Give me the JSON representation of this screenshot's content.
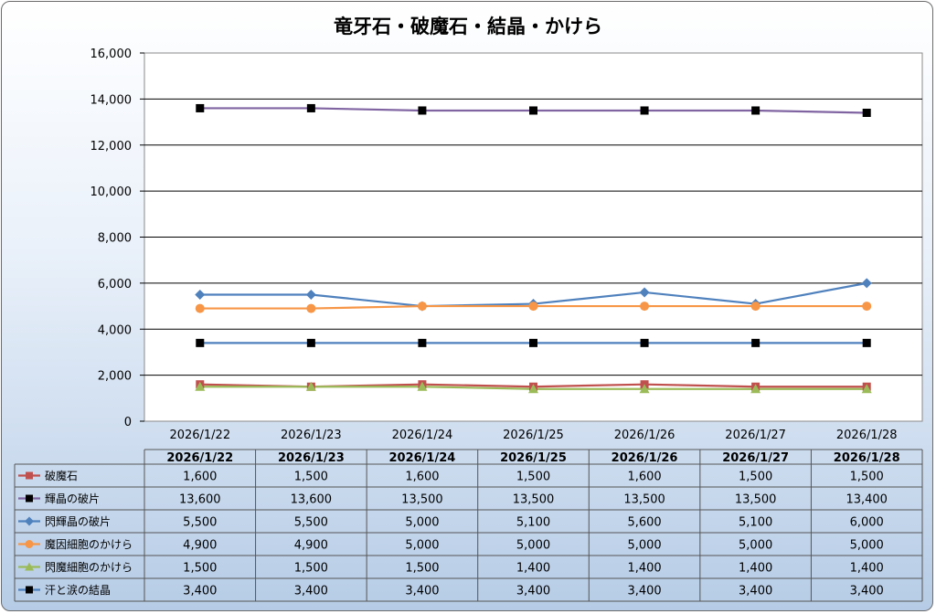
{
  "chart_data": {
    "type": "line",
    "title": "竜牙石・破魔石・結晶・かけら",
    "categories": [
      "2026/1/22",
      "2026/1/23",
      "2026/1/24",
      "2026/1/25",
      "2026/1/26",
      "2026/1/27",
      "2026/1/28"
    ],
    "ylim": [
      0,
      16000
    ],
    "yticks": [
      0,
      2000,
      4000,
      6000,
      8000,
      10000,
      12000,
      14000,
      16000
    ],
    "ytick_labels": [
      "0",
      "2,000",
      "4,000",
      "6,000",
      "8,000",
      "10,000",
      "12,000",
      "14,000",
      "16,000"
    ],
    "grid": true,
    "legend": "data-table",
    "series": [
      {
        "name": "破魔石",
        "color": "#c0504d",
        "line_color": "#c0504d",
        "marker": "square",
        "values": [
          1600,
          1500,
          1600,
          1500,
          1600,
          1500,
          1500
        ],
        "labels": [
          "1,600",
          "1,500",
          "1,600",
          "1,500",
          "1,600",
          "1,500",
          "1,500"
        ]
      },
      {
        "name": "輝晶の破片",
        "color": "#000000",
        "line_color": "#8064a2",
        "marker": "square",
        "values": [
          13600,
          13600,
          13500,
          13500,
          13500,
          13500,
          13400
        ],
        "labels": [
          "13,600",
          "13,600",
          "13,500",
          "13,500",
          "13,500",
          "13,500",
          "13,400"
        ]
      },
      {
        "name": "閃輝晶の破片",
        "color": "#4f81bd",
        "line_color": "#4f81bd",
        "marker": "diamond",
        "values": [
          5500,
          5500,
          5000,
          5100,
          5600,
          5100,
          6000
        ],
        "labels": [
          "5,500",
          "5,500",
          "5,000",
          "5,100",
          "5,600",
          "5,100",
          "6,000"
        ]
      },
      {
        "name": "魔因細胞のかけら",
        "color": "#f79646",
        "line_color": "#f79646",
        "marker": "circle",
        "values": [
          4900,
          4900,
          5000,
          5000,
          5000,
          5000,
          5000
        ],
        "labels": [
          "4,900",
          "4,900",
          "5,000",
          "5,000",
          "5,000",
          "5,000",
          "5,000"
        ]
      },
      {
        "name": "閃魔細胞のかけら",
        "color": "#9bbb59",
        "line_color": "#9bbb59",
        "marker": "triangle",
        "values": [
          1500,
          1500,
          1500,
          1400,
          1400,
          1400,
          1400
        ],
        "labels": [
          "1,500",
          "1,500",
          "1,500",
          "1,400",
          "1,400",
          "1,400",
          "1,400"
        ]
      },
      {
        "name": "汗と涙の結晶",
        "color": "#000000",
        "line_color": "#4f81bd",
        "marker": "square",
        "values": [
          3400,
          3400,
          3400,
          3400,
          3400,
          3400,
          3400
        ],
        "labels": [
          "3,400",
          "3,400",
          "3,400",
          "3,400",
          "3,400",
          "3,400",
          "3,400"
        ]
      }
    ]
  }
}
